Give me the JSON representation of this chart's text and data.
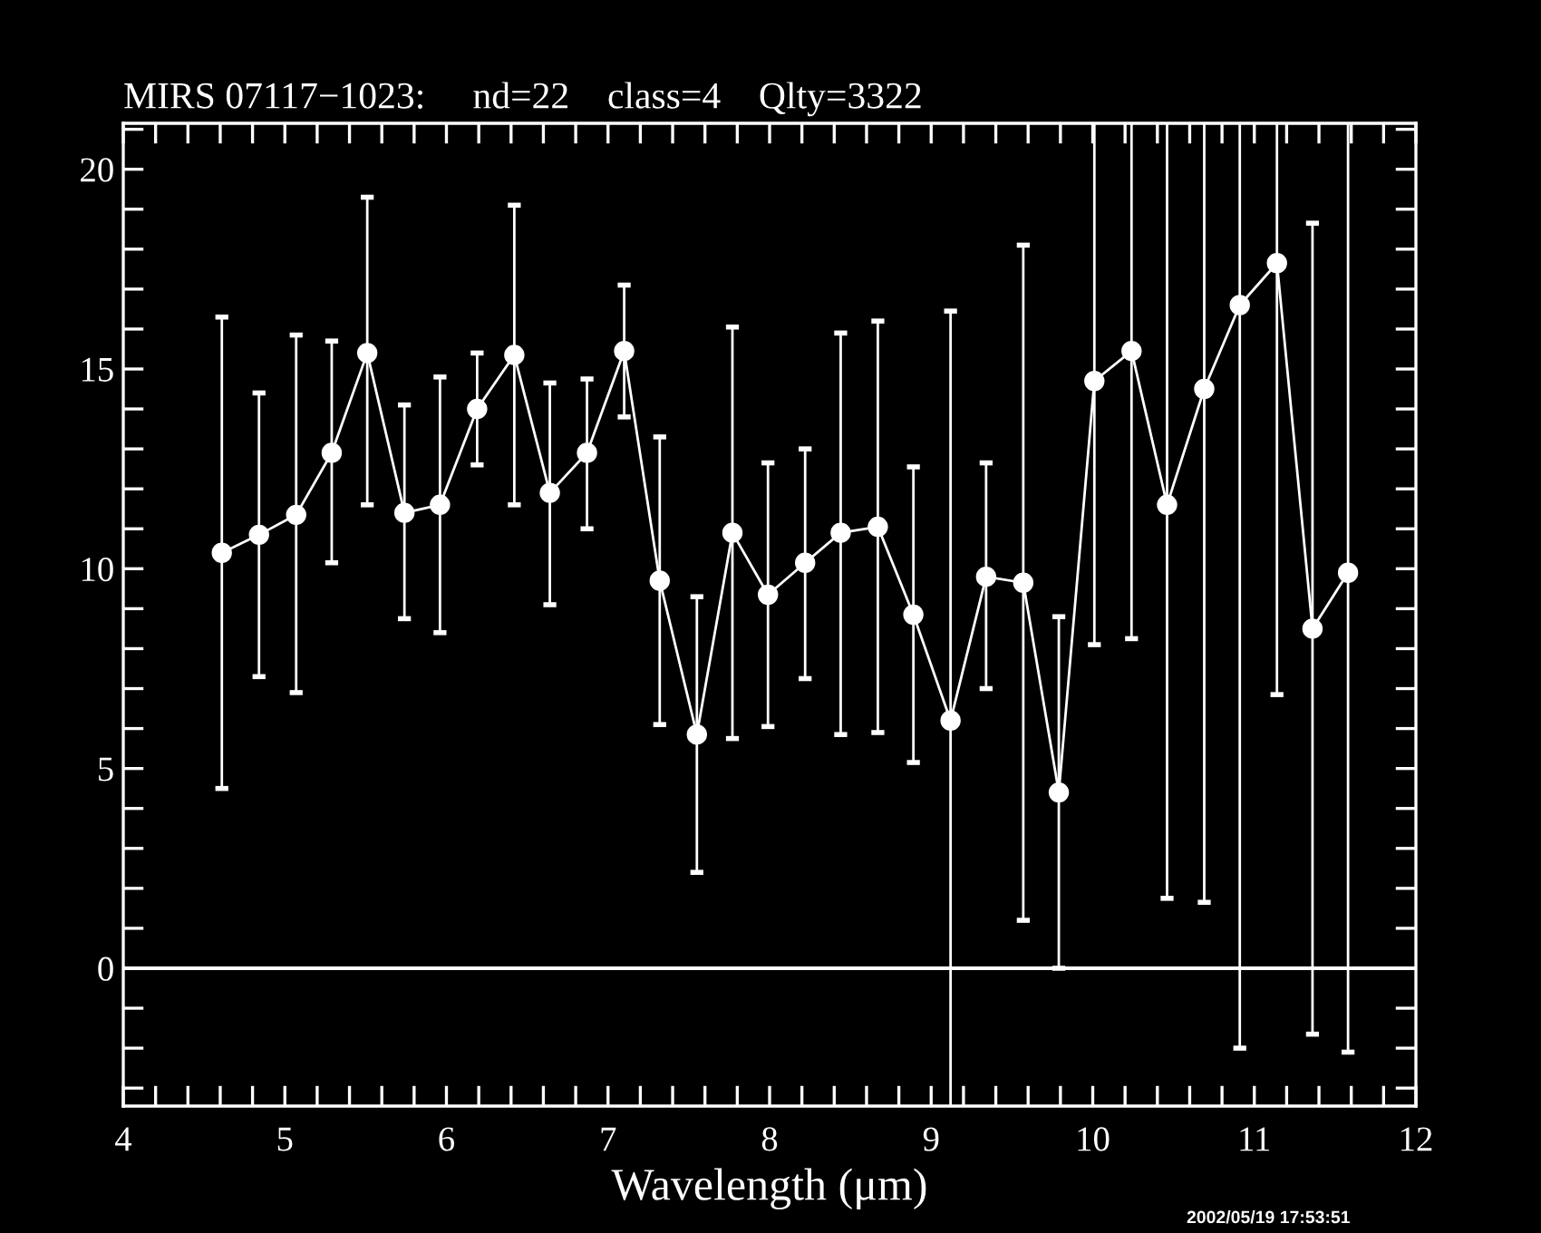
{
  "chart_data": {
    "type": "line",
    "title": "MIRS 07117−1023:     nd=22    class=4    Qlty=3322",
    "xlabel": "Wavelength (μm)",
    "x": [
      4.61,
      4.84,
      5.07,
      5.29,
      5.51,
      5.74,
      5.96,
      6.19,
      6.42,
      6.64,
      6.87,
      7.1,
      7.32,
      7.55,
      7.77,
      7.99,
      8.22,
      8.44,
      8.67,
      8.89,
      9.12,
      9.34,
      9.57,
      9.79,
      10.01,
      10.24,
      10.46,
      10.69,
      10.91,
      11.14,
      11.36,
      11.58
    ],
    "series": [
      {
        "color": "#ffffff",
        "values": [
          10.4,
          10.85,
          11.35,
          12.9,
          15.4,
          11.4,
          11.6,
          14.0,
          15.35,
          11.9,
          12.9,
          15.45,
          9.7,
          5.85,
          10.9,
          9.35,
          10.15,
          10.9,
          11.05,
          8.85,
          6.2,
          9.8,
          9.65,
          4.4,
          14.7,
          15.45,
          11.6,
          14.5,
          16.6,
          17.65,
          8.5,
          9.9
        ],
        "errors": [
          [
            4.5,
            16.3
          ],
          [
            7.3,
            14.4
          ],
          [
            6.9,
            15.85
          ],
          [
            10.15,
            15.7
          ],
          [
            11.6,
            19.3
          ],
          [
            8.75,
            14.1
          ],
          [
            8.4,
            14.8
          ],
          [
            12.6,
            15.4
          ],
          [
            11.6,
            19.1
          ],
          [
            9.1,
            14.65
          ],
          [
            11.0,
            14.75
          ],
          [
            13.8,
            17.1
          ],
          [
            6.1,
            13.3
          ],
          [
            2.4,
            9.3
          ],
          [
            5.75,
            16.05
          ],
          [
            6.05,
            12.65
          ],
          [
            7.25,
            13.0
          ],
          [
            5.85,
            15.9
          ],
          [
            5.9,
            16.2
          ],
          [
            5.15,
            12.55
          ],
          [
            -3.45,
            16.45
          ],
          [
            7.0,
            12.65
          ],
          [
            1.2,
            18.1
          ],
          [
            0.0,
            8.8
          ],
          [
            8.1,
            21.15
          ],
          [
            8.25,
            21.15
          ],
          [
            1.75,
            21.15
          ],
          [
            1.65,
            21.15
          ],
          [
            -2.0,
            21.15
          ],
          [
            6.85,
            21.15
          ],
          [
            -1.65,
            18.65
          ],
          [
            -2.1,
            21.15
          ]
        ]
      }
    ],
    "marker": "circle",
    "line_style": "solid",
    "grid": false,
    "legend": false,
    "xlim": [
      4,
      12
    ],
    "ylim": [
      -3.45,
      21.15
    ],
    "xticks": [
      4,
      {
        "value": 4.2,
        "label": null
      },
      {
        "value": 4.4,
        "label": null
      },
      {
        "value": 4.6,
        "label": null
      },
      {
        "value": 4.8,
        "label": null
      },
      5,
      {
        "value": 5.2,
        "label": null
      },
      {
        "value": 5.4,
        "label": null
      },
      {
        "value": 5.6,
        "label": null
      },
      {
        "value": 5.8,
        "label": null
      },
      6,
      {
        "value": 6.2,
        "label": null
      },
      {
        "value": 6.4,
        "label": null
      },
      {
        "value": 6.6,
        "label": null
      },
      {
        "value": 6.8,
        "label": null
      },
      7,
      {
        "value": 7.2,
        "label": null
      },
      {
        "value": 7.4,
        "label": null
      },
      {
        "value": 7.6,
        "label": null
      },
      {
        "value": 7.8,
        "label": null
      },
      8,
      {
        "value": 8.2,
        "label": null
      },
      {
        "value": 8.4,
        "label": null
      },
      {
        "value": 8.6,
        "label": null
      },
      {
        "value": 8.8,
        "label": null
      },
      9,
      {
        "value": 9.2,
        "label": null
      },
      {
        "value": 9.4,
        "label": null
      },
      {
        "value": 9.6,
        "label": null
      },
      {
        "value": 9.8,
        "label": null
      },
      10,
      {
        "value": 10.2,
        "label": null
      },
      {
        "value": 10.4,
        "label": null
      },
      {
        "value": 10.6,
        "label": null
      },
      {
        "value": 10.8,
        "label": null
      },
      11,
      {
        "value": 11.2,
        "label": null
      },
      {
        "value": 11.4,
        "label": null
      },
      {
        "value": 11.6,
        "label": null
      },
      {
        "value": 11.8,
        "label": null
      },
      12
    ],
    "yticks": [
      {
        "value": -3,
        "label": null
      },
      {
        "value": -2,
        "label": null
      },
      {
        "value": -1,
        "label": null
      },
      0,
      {
        "value": 1,
        "label": null
      },
      {
        "value": 2,
        "label": null
      },
      {
        "value": 3,
        "label": null
      },
      {
        "value": 4,
        "label": null
      },
      5,
      {
        "value": 6,
        "label": null
      },
      {
        "value": 7,
        "label": null
      },
      {
        "value": 8,
        "label": null
      },
      {
        "value": 9,
        "label": null
      },
      10,
      {
        "value": 11,
        "label": null
      },
      {
        "value": 12,
        "label": null
      },
      {
        "value": 13,
        "label": null
      },
      {
        "value": 14,
        "label": null
      },
      15,
      {
        "value": 16,
        "label": null
      },
      {
        "value": 17,
        "label": null
      },
      {
        "value": 18,
        "label": null
      },
      {
        "value": 19,
        "label": null
      },
      20,
      {
        "value": 21,
        "label": null
      }
    ],
    "ref_lines": [
      {
        "axis": "y",
        "value": 0,
        "color": "#ffffff",
        "line_style": "solid"
      }
    ],
    "annotations": [
      "2002/05/19 17:53:51"
    ]
  }
}
